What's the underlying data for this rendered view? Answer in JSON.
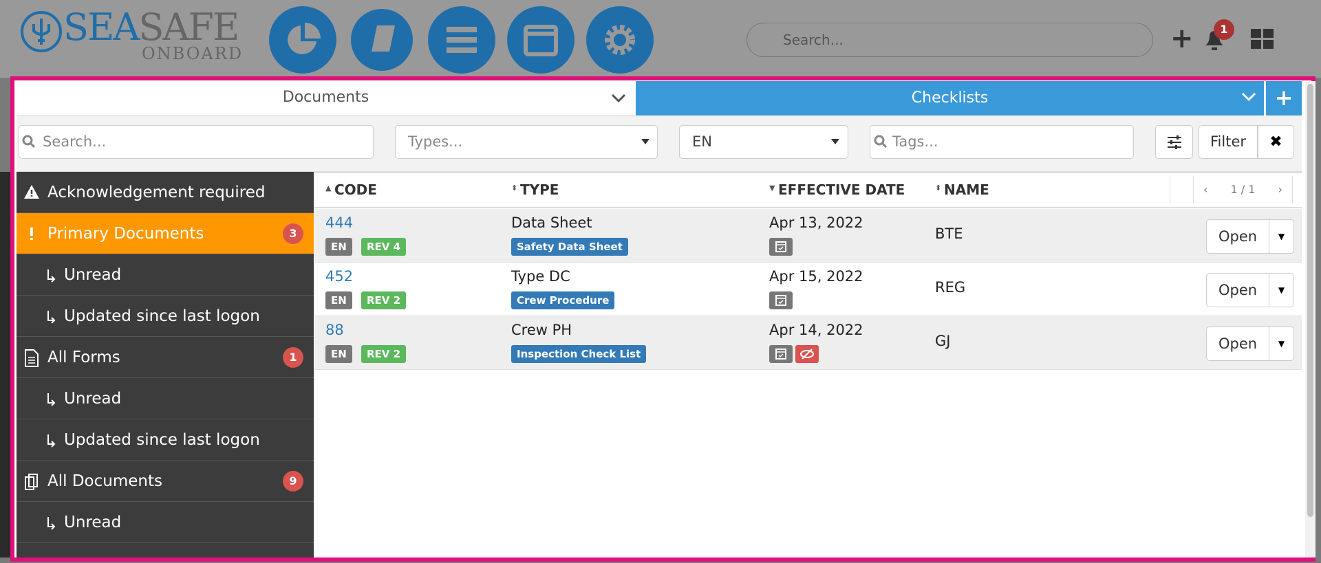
{
  "header": {
    "logo": {
      "part1": "SEA",
      "part2": "SAFE",
      "sub": "ONBOARD"
    },
    "search_placeholder": "Search...",
    "notification_count": "1"
  },
  "tabs": {
    "documents": "Documents",
    "checklists": "Checklists"
  },
  "filters": {
    "search": "Search...",
    "types": "Types...",
    "language": "EN",
    "tags": "Tags...",
    "filter_button": "Filter"
  },
  "sidebar": [
    {
      "label": "Acknowledgement required",
      "icon": "warning"
    },
    {
      "label": "Primary Documents",
      "icon": "exclaim",
      "badge": "3",
      "active": true
    },
    {
      "label": "Unread",
      "sub": true
    },
    {
      "label": "Updated since last logon",
      "sub": true
    },
    {
      "label": "All Forms",
      "icon": "form",
      "badge": "1"
    },
    {
      "label": "Unread",
      "sub": true
    },
    {
      "label": "Updated since last logon",
      "sub": true
    },
    {
      "label": "All Documents",
      "icon": "docs",
      "badge": "9"
    },
    {
      "label": "Unread",
      "sub": true
    }
  ],
  "table": {
    "columns": [
      "CODE",
      "TYPE",
      "EFFECTIVE DATE",
      "NAME"
    ],
    "pagination": "1 / 1",
    "rows": [
      {
        "code": "444",
        "lang": "EN",
        "rev": "REV 4",
        "type": "Data Sheet",
        "type_tag": "Safety Data Sheet",
        "date": "Apr 13, 2022",
        "name": "BTE",
        "action": "Open",
        "icons": [
          "calendar"
        ]
      },
      {
        "code": "452",
        "lang": "EN",
        "rev": "REV 2",
        "type": "Type DC",
        "type_tag": "Crew Procedure",
        "date": "Apr 15, 2022",
        "name": "REG",
        "action": "Open",
        "icons": [
          "calendar"
        ]
      },
      {
        "code": "88",
        "lang": "EN",
        "rev": "REV 2",
        "type": "Crew PH",
        "type_tag": "Inspection Check List",
        "date": "Apr 14, 2022",
        "name": "GJ",
        "action": "Open",
        "icons": [
          "calendar",
          "eye-slash"
        ]
      }
    ]
  }
}
